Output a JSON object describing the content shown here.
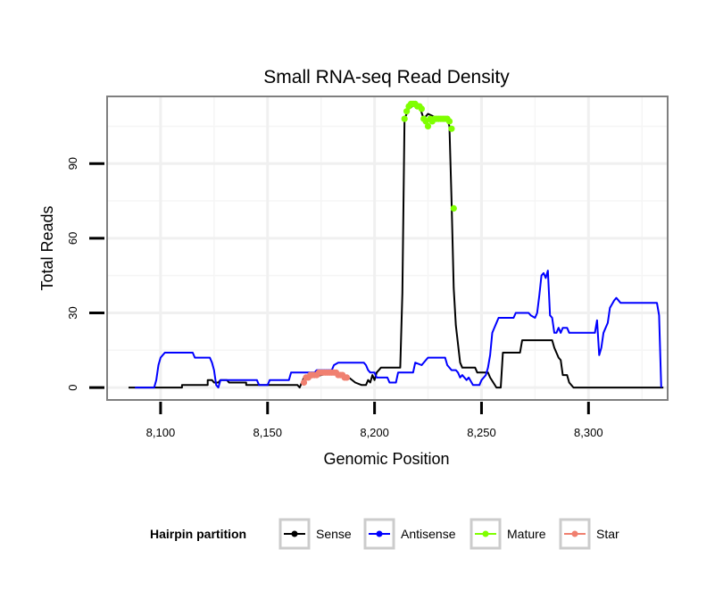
{
  "chart_data": {
    "type": "line",
    "title": "Small RNA-seq Read Density",
    "xlabel": "Genomic Position",
    "ylabel": "Total Reads",
    "xlim": [
      8075,
      8337
    ],
    "ylim": [
      -5,
      117
    ],
    "x_ticks": [
      8100,
      8150,
      8200,
      8250,
      8300
    ],
    "x_tick_labels": [
      "8,100",
      "8,150",
      "8,200",
      "8,250",
      "8,300"
    ],
    "y_ticks": [
      0,
      30,
      60,
      90
    ],
    "y_tick_labels": [
      "0",
      "30",
      "60",
      "90"
    ],
    "grid": true,
    "legend": {
      "title": "Hairpin partition",
      "position": "bottom",
      "entries": [
        {
          "label": "Sense",
          "color": "#000000"
        },
        {
          "label": "Antisense",
          "color": "#0000ff"
        },
        {
          "label": "Mature",
          "color": "#7fff00"
        },
        {
          "label": "Star",
          "color": "#f08070"
        }
      ]
    },
    "series": [
      {
        "name": "Sense",
        "color": "#000000",
        "kind": "line",
        "points": [
          [
            8085,
            0
          ],
          [
            8110,
            0
          ],
          [
            8110,
            1
          ],
          [
            8122,
            1
          ],
          [
            8122,
            3
          ],
          [
            8124,
            3
          ],
          [
            8125,
            2
          ],
          [
            8127,
            2
          ],
          [
            8128,
            3
          ],
          [
            8131,
            3
          ],
          [
            8132,
            2
          ],
          [
            8140,
            2
          ],
          [
            8140,
            1
          ],
          [
            8164,
            1
          ],
          [
            8165,
            0
          ],
          [
            8166,
            2
          ],
          [
            8167,
            4
          ],
          [
            8170,
            4
          ],
          [
            8175,
            5
          ],
          [
            8180,
            6
          ],
          [
            8185,
            5
          ],
          [
            8188,
            4
          ],
          [
            8191,
            2
          ],
          [
            8194,
            1
          ],
          [
            8196,
            1
          ],
          [
            8197,
            3
          ],
          [
            8198,
            2
          ],
          [
            8199,
            5
          ],
          [
            8200,
            3
          ],
          [
            8201,
            6
          ],
          [
            8202,
            7
          ],
          [
            8203,
            8
          ],
          [
            8212,
            8
          ],
          [
            8213,
            38
          ],
          [
            8214,
            108
          ],
          [
            8216,
            112
          ],
          [
            8219,
            114
          ],
          [
            8221,
            113
          ],
          [
            8223,
            108
          ],
          [
            8225,
            110
          ],
          [
            8230,
            108
          ],
          [
            8234,
            108
          ],
          [
            8235,
            105
          ],
          [
            8236,
            75
          ],
          [
            8237,
            40
          ],
          [
            8238,
            25
          ],
          [
            8240,
            10
          ],
          [
            8241,
            8
          ],
          [
            8247,
            8
          ],
          [
            8248,
            6
          ],
          [
            8253,
            6
          ],
          [
            8254,
            4
          ],
          [
            8257,
            0
          ],
          [
            8259,
            0
          ],
          [
            8260,
            14
          ],
          [
            8268,
            14
          ],
          [
            8269,
            19
          ],
          [
            8283,
            19
          ],
          [
            8284,
            16
          ],
          [
            8286,
            12
          ],
          [
            8287,
            11
          ],
          [
            8288,
            5
          ],
          [
            8290,
            5
          ],
          [
            8291,
            2
          ],
          [
            8293,
            0
          ],
          [
            8335,
            0
          ]
        ]
      },
      {
        "name": "Antisense",
        "color": "#0000ff",
        "kind": "line",
        "points": [
          [
            8088,
            0
          ],
          [
            8097,
            0
          ],
          [
            8098,
            3
          ],
          [
            8099,
            9
          ],
          [
            8100,
            12
          ],
          [
            8102,
            14
          ],
          [
            8115,
            14
          ],
          [
            8116,
            12
          ],
          [
            8123,
            12
          ],
          [
            8124,
            10
          ],
          [
            8125,
            7
          ],
          [
            8126,
            1
          ],
          [
            8127,
            0
          ],
          [
            8128,
            3
          ],
          [
            8145,
            3
          ],
          [
            8146,
            1
          ],
          [
            8150,
            1
          ],
          [
            8151,
            3
          ],
          [
            8160,
            3
          ],
          [
            8161,
            6
          ],
          [
            8172,
            6
          ],
          [
            8173,
            7
          ],
          [
            8180,
            7
          ],
          [
            8181,
            9
          ],
          [
            8183,
            10
          ],
          [
            8195,
            10
          ],
          [
            8196,
            9
          ],
          [
            8197,
            7
          ],
          [
            8198,
            6
          ],
          [
            8200,
            6
          ],
          [
            8201,
            4
          ],
          [
            8206,
            4
          ],
          [
            8207,
            2
          ],
          [
            8210,
            2
          ],
          [
            8211,
            6
          ],
          [
            8218,
            6
          ],
          [
            8219,
            10
          ],
          [
            8222,
            9
          ],
          [
            8224,
            11
          ],
          [
            8225,
            12
          ],
          [
            8233,
            12
          ],
          [
            8234,
            9
          ],
          [
            8236,
            7
          ],
          [
            8238,
            7
          ],
          [
            8239,
            6
          ],
          [
            8240,
            4
          ],
          [
            8241,
            5
          ],
          [
            8243,
            3
          ],
          [
            8244,
            4
          ],
          [
            8246,
            1
          ],
          [
            8249,
            1
          ],
          [
            8250,
            3
          ],
          [
            8252,
            5
          ],
          [
            8253,
            8
          ],
          [
            8254,
            13
          ],
          [
            8255,
            22
          ],
          [
            8257,
            26
          ],
          [
            8258,
            28
          ],
          [
            8265,
            28
          ],
          [
            8266,
            30
          ],
          [
            8272,
            30
          ],
          [
            8273,
            29
          ],
          [
            8275,
            28
          ],
          [
            8276,
            30
          ],
          [
            8277,
            37
          ],
          [
            8278,
            45
          ],
          [
            8279,
            46
          ],
          [
            8280,
            44
          ],
          [
            8281,
            47
          ],
          [
            8282,
            29
          ],
          [
            8283,
            28
          ],
          [
            8284,
            22
          ],
          [
            8285,
            22
          ],
          [
            8286,
            24
          ],
          [
            8287,
            22
          ],
          [
            8288,
            24
          ],
          [
            8290,
            24
          ],
          [
            8291,
            22
          ],
          [
            8303,
            22
          ],
          [
            8304,
            27
          ],
          [
            8305,
            13
          ],
          [
            8306,
            16
          ],
          [
            8307,
            22
          ],
          [
            8309,
            26
          ],
          [
            8310,
            32
          ],
          [
            8312,
            35
          ],
          [
            8313,
            36
          ],
          [
            8315,
            34
          ],
          [
            8332,
            34
          ],
          [
            8333,
            29
          ],
          [
            8334,
            0
          ]
        ]
      },
      {
        "name": "Mature",
        "color": "#7fff00",
        "kind": "points",
        "points": [
          [
            8214,
            108
          ],
          [
            8215,
            111
          ],
          [
            8216,
            113
          ],
          [
            8217,
            114
          ],
          [
            8218,
            114
          ],
          [
            8219,
            114
          ],
          [
            8220,
            113
          ],
          [
            8221,
            113
          ],
          [
            8222,
            112
          ],
          [
            8223,
            108
          ],
          [
            8224,
            107
          ],
          [
            8225,
            105
          ],
          [
            8226,
            108
          ],
          [
            8227,
            107
          ],
          [
            8228,
            108
          ],
          [
            8229,
            108
          ],
          [
            8230,
            108
          ],
          [
            8231,
            108
          ],
          [
            8232,
            108
          ],
          [
            8233,
            108
          ],
          [
            8234,
            108
          ],
          [
            8235,
            107
          ],
          [
            8236,
            104
          ],
          [
            8237,
            72
          ]
        ]
      },
      {
        "name": "Star",
        "color": "#f08070",
        "kind": "points",
        "points": [
          [
            8167,
            2
          ],
          [
            8168,
            4
          ],
          [
            8169,
            4
          ],
          [
            8170,
            5
          ],
          [
            8171,
            5
          ],
          [
            8172,
            5
          ],
          [
            8173,
            5
          ],
          [
            8174,
            6
          ],
          [
            8175,
            6
          ],
          [
            8176,
            6
          ],
          [
            8177,
            6
          ],
          [
            8178,
            6
          ],
          [
            8179,
            6
          ],
          [
            8180,
            6
          ],
          [
            8181,
            6
          ],
          [
            8182,
            6
          ],
          [
            8183,
            5
          ],
          [
            8184,
            5
          ],
          [
            8185,
            5
          ],
          [
            8186,
            4
          ],
          [
            8187,
            4
          ]
        ]
      }
    ]
  }
}
